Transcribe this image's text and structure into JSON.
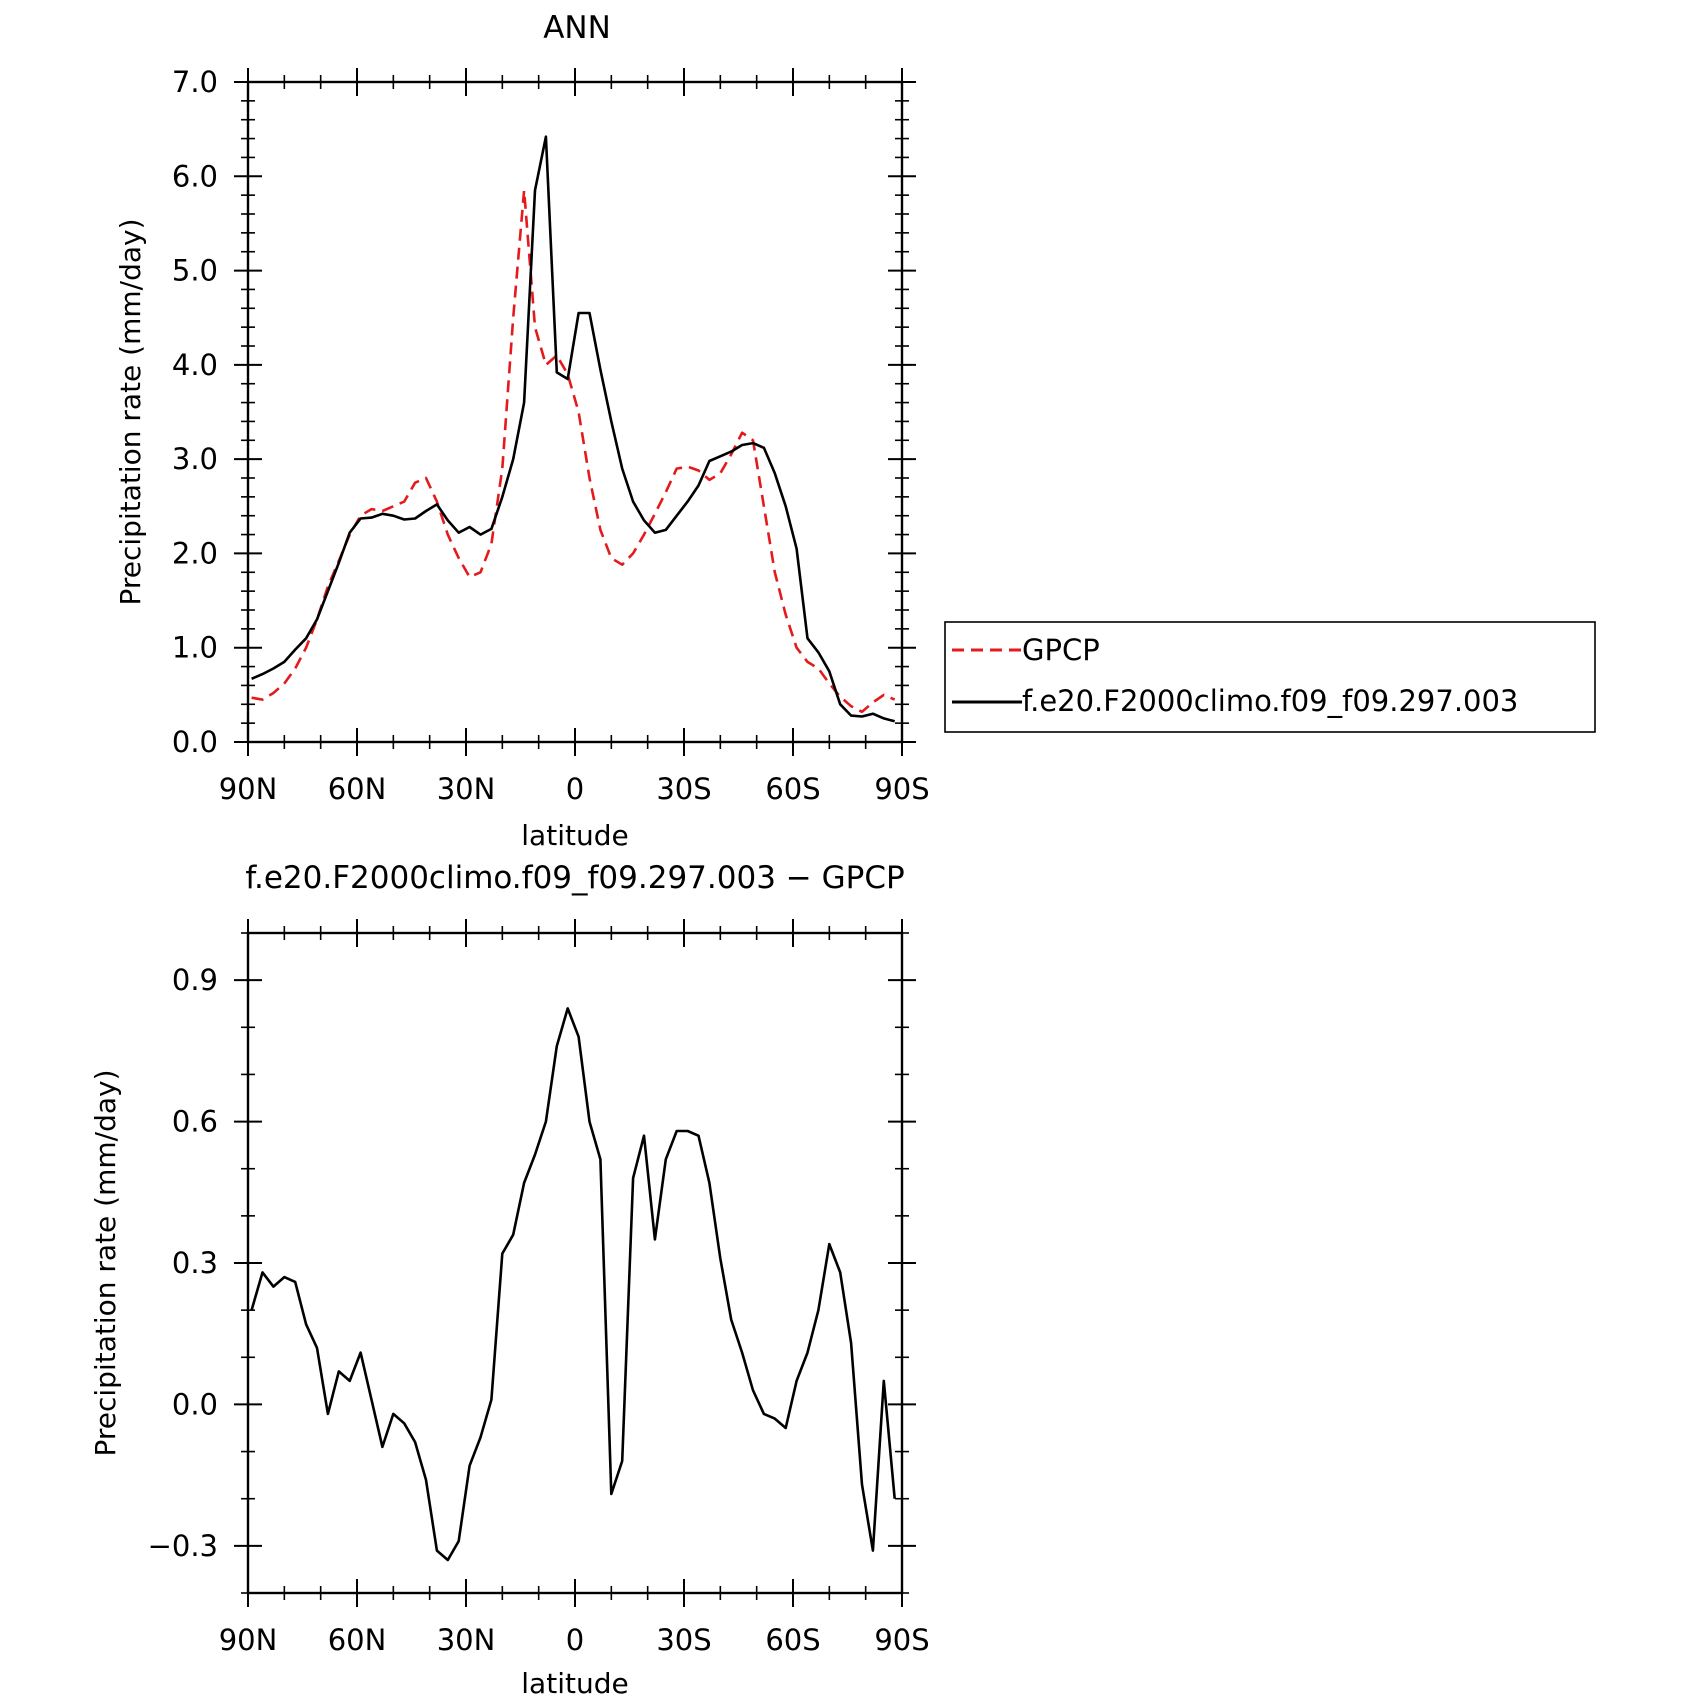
{
  "chart_data": [
    {
      "type": "line",
      "title": "ANN",
      "xlabel": "latitude",
      "ylabel": "Precipitation rate (mm/day)",
      "xlim": [
        90,
        -90
      ],
      "ylim": [
        0,
        7
      ],
      "xticks": [
        90,
        60,
        30,
        0,
        -30,
        -60,
        -90
      ],
      "xtick_labels": [
        "90N",
        "60N",
        "30N",
        "0",
        "30S",
        "60S",
        "90S"
      ],
      "yticks": [
        0,
        1,
        2,
        3,
        4,
        5,
        6,
        7
      ],
      "ytick_labels": [
        "0.0",
        "1.0",
        "2.0",
        "3.0",
        "4.0",
        "5.0",
        "6.0",
        "7.0"
      ],
      "legend_placement": "right",
      "series": [
        {
          "name": "GPCP",
          "color": "#e41a1c",
          "dash": "dashed",
          "x": [
            89,
            86,
            83,
            80,
            77,
            74,
            71,
            68,
            65,
            62,
            59,
            56,
            53,
            50,
            47,
            44,
            41,
            38,
            35,
            32,
            29,
            26,
            23,
            20,
            17,
            14,
            11,
            8,
            5,
            2,
            -1,
            -4,
            -7,
            -10,
            -13,
            -16,
            -19,
            -22,
            -25,
            -28,
            -31,
            -34,
            -37,
            -40,
            -43,
            -46,
            -49,
            -52,
            -55,
            -58,
            -61,
            -64,
            -67,
            -70,
            -73,
            -76,
            -79,
            -82,
            -85,
            -88
          ],
          "y": [
            0.47,
            0.45,
            0.52,
            0.62,
            0.78,
            1.0,
            1.3,
            1.65,
            1.92,
            2.2,
            2.4,
            2.47,
            2.45,
            2.5,
            2.55,
            2.75,
            2.8,
            2.55,
            2.2,
            1.95,
            1.75,
            1.8,
            2.1,
            2.9,
            4.5,
            5.85,
            4.4,
            4.0,
            4.1,
            3.9,
            3.5,
            2.8,
            2.25,
            1.95,
            1.88,
            2.0,
            2.2,
            2.42,
            2.65,
            2.9,
            2.92,
            2.88,
            2.78,
            2.85,
            3.05,
            3.28,
            3.2,
            2.5,
            1.8,
            1.35,
            1.0,
            0.85,
            0.78,
            0.62,
            0.48,
            0.38,
            0.32,
            0.42,
            0.5,
            0.45
          ]
        },
        {
          "name": "f.e20.F2000climo.f09_f09.297.003",
          "color": "#000000",
          "dash": "solid",
          "x": [
            89,
            86,
            83,
            80,
            77,
            74,
            71,
            68,
            65,
            62,
            59,
            56,
            53,
            50,
            47,
            44,
            41,
            38,
            35,
            32,
            29,
            26,
            23,
            20,
            17,
            14,
            11,
            8,
            5,
            2,
            -1,
            -4,
            -7,
            -10,
            -13,
            -16,
            -19,
            -22,
            -25,
            -28,
            -31,
            -34,
            -37,
            -40,
            -43,
            -46,
            -49,
            -52,
            -55,
            -58,
            -61,
            -64,
            -67,
            -70,
            -73,
            -76,
            -79,
            -82,
            -85,
            -88
          ],
          "y": [
            0.67,
            0.72,
            0.78,
            0.85,
            0.98,
            1.1,
            1.3,
            1.6,
            1.9,
            2.22,
            2.37,
            2.38,
            2.42,
            2.4,
            2.36,
            2.37,
            2.45,
            2.52,
            2.35,
            2.22,
            2.28,
            2.2,
            2.26,
            2.6,
            3.0,
            3.6,
            5.85,
            6.42,
            3.92,
            3.85,
            4.55,
            4.55,
            3.95,
            3.4,
            2.9,
            2.55,
            2.35,
            2.22,
            2.25,
            2.4,
            2.55,
            2.72,
            2.98,
            3.03,
            3.08,
            3.15,
            3.17,
            3.12,
            2.85,
            2.5,
            2.05,
            1.1,
            0.95,
            0.75,
            0.4,
            0.28,
            0.27,
            0.3,
            0.25,
            0.22
          ]
        }
      ]
    },
    {
      "type": "line",
      "title": "f.e20.F2000climo.f09_f09.297.003 − GPCP",
      "xlabel": "latitude",
      "ylabel": "Precipitation rate (mm/day)",
      "xlim": [
        90,
        -90
      ],
      "ylim": [
        -0.4,
        1.0
      ],
      "xticks": [
        90,
        60,
        30,
        0,
        -30,
        -60,
        -90
      ],
      "xtick_labels": [
        "90N",
        "60N",
        "30N",
        "0",
        "30S",
        "60S",
        "90S"
      ],
      "yticks": [
        -0.3,
        0,
        0.3,
        0.6,
        0.9
      ],
      "ytick_labels": [
        "−0.3",
        "0.0",
        "0.3",
        "0.6",
        "0.9"
      ],
      "series": [
        {
          "color": "#000000",
          "dash": "solid",
          "x": [
            89,
            86,
            83,
            80,
            77,
            74,
            71,
            68,
            65,
            62,
            59,
            56,
            53,
            50,
            47,
            44,
            41,
            38,
            35,
            32,
            29,
            26,
            23,
            20,
            17,
            14,
            11,
            8,
            5,
            2,
            -1,
            -4,
            -7,
            -10,
            -13,
            -16,
            -19,
            -22,
            -25,
            -28,
            -31,
            -34,
            -37,
            -40,
            -43,
            -46,
            -49,
            -52,
            -55,
            -58,
            -61,
            -64,
            -67,
            -70,
            -73,
            -76,
            -79,
            -82,
            -85,
            -88
          ],
          "y": [
            0.2,
            0.28,
            0.25,
            0.27,
            0.26,
            0.17,
            0.12,
            -0.02,
            0.07,
            0.05,
            0.11,
            0.01,
            -0.09,
            -0.02,
            -0.04,
            -0.08,
            -0.16,
            -0.31,
            -0.33,
            -0.29,
            -0.13,
            -0.07,
            0.01,
            0.32,
            0.36,
            0.47,
            0.53,
            0.6,
            0.76,
            0.84,
            0.78,
            0.6,
            0.52,
            -0.19,
            -0.12,
            0.48,
            0.57,
            0.35,
            0.52,
            0.58,
            0.58,
            0.57,
            0.47,
            0.31,
            0.18,
            0.11,
            0.03,
            -0.02,
            -0.03,
            -0.05,
            0.05,
            0.11,
            0.2,
            0.34,
            0.28,
            0.13,
            -0.17,
            -0.31,
            0.05,
            -0.2
          ]
        }
      ]
    }
  ]
}
